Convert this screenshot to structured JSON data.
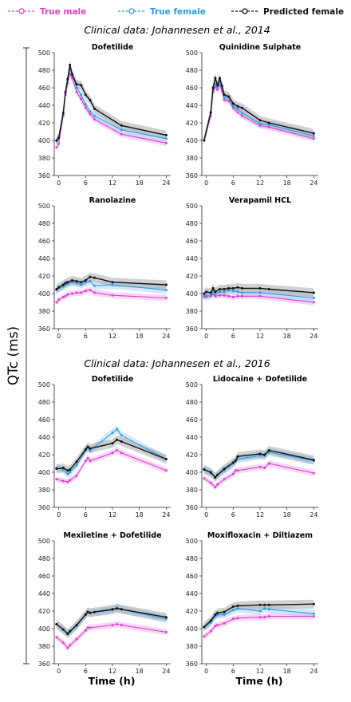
{
  "legend": [
    {
      "label": "True male",
      "color": "#e040d0"
    },
    {
      "label": "True female",
      "color": "#2e9be6"
    },
    {
      "label": "Predicted female",
      "color": "#111111"
    }
  ],
  "sections": [
    "Clinical data: Johannesen et al., 2014",
    "Clinical data: Johannesen et al., 2016"
  ],
  "axes": {
    "ylabel": "QTc (ms)",
    "xlabel": "Time (h)"
  },
  "chart_data": [
    {
      "type": "line",
      "title": "Dofetilide",
      "section": 0,
      "xlim": [
        -1,
        25
      ],
      "ylim": [
        360,
        500
      ],
      "xticks": [
        0,
        6,
        12,
        18,
        24
      ],
      "yticks": [
        360,
        380,
        400,
        420,
        440,
        460,
        480,
        500
      ],
      "series": [
        {
          "name": "True male",
          "x": [
            -0.5,
            0,
            1,
            1.5,
            2,
            2.5,
            3,
            4,
            5,
            6,
            7,
            8,
            14,
            24
          ],
          "y": [
            392,
            396,
            428,
            452,
            465,
            476,
            471,
            455,
            447,
            437,
            430,
            424,
            407,
            397
          ]
        },
        {
          "name": "True female",
          "x": [
            -0.5,
            0,
            1,
            1.5,
            2,
            2.5,
            3,
            4,
            5,
            6,
            7,
            8,
            14,
            24
          ],
          "y": [
            399,
            402,
            430,
            455,
            469,
            481,
            476,
            460,
            452,
            441,
            433,
            428,
            412,
            402
          ]
        },
        {
          "name": "Predicted female",
          "x": [
            -0.5,
            0,
            1,
            1.5,
            2,
            2.5,
            3,
            4,
            5,
            6,
            7,
            8,
            14,
            24
          ],
          "y": [
            400,
            403,
            431,
            455,
            470,
            486,
            475,
            464,
            463,
            452,
            446,
            436,
            417,
            406
          ]
        }
      ]
    },
    {
      "type": "line",
      "title": "Quinidine Sulphate",
      "section": 0,
      "xlim": [
        -1,
        25
      ],
      "ylim": [
        360,
        500
      ],
      "xticks": [
        0,
        6,
        12,
        18,
        24
      ],
      "yticks": [
        360,
        380,
        400,
        420,
        440,
        460,
        480,
        500
      ],
      "series": [
        {
          "name": "True male",
          "x": [
            -0.5,
            1,
            1.5,
            2,
            2.5,
            3,
            3.5,
            4,
            5,
            6,
            7,
            8,
            12,
            14,
            24
          ],
          "y": [
            400,
            428,
            455,
            461,
            458,
            463,
            456,
            446,
            445,
            437,
            432,
            428,
            417,
            415,
            402
          ]
        },
        {
          "name": "True female",
          "x": [
            -0.5,
            1,
            1.5,
            2,
            2.5,
            3,
            3.5,
            4,
            5,
            6,
            7,
            8,
            12,
            14,
            24
          ],
          "y": [
            400,
            431,
            458,
            464,
            461,
            466,
            460,
            449,
            449,
            439,
            436,
            431,
            419,
            418,
            405
          ]
        },
        {
          "name": "Predicted female",
          "x": [
            -0.5,
            1,
            1.5,
            2,
            2.5,
            3,
            3.5,
            4,
            5,
            6,
            7,
            8,
            12,
            14,
            24
          ],
          "y": [
            400,
            432,
            460,
            471,
            463,
            471,
            462,
            452,
            450,
            442,
            439,
            437,
            423,
            420,
            408
          ]
        }
      ]
    },
    {
      "type": "line",
      "title": "Ranolazine",
      "section": 0,
      "xlim": [
        -1,
        25
      ],
      "ylim": [
        360,
        500
      ],
      "xticks": [
        0,
        6,
        12,
        18,
        24
      ],
      "yticks": [
        360,
        380,
        400,
        420,
        440,
        460,
        480,
        500
      ],
      "series": [
        {
          "name": "True male",
          "x": [
            -0.5,
            0,
            1,
            1.5,
            2,
            3,
            4,
            5,
            6,
            7,
            8,
            12,
            24
          ],
          "y": [
            390,
            393,
            396,
            397,
            399,
            400,
            401,
            401,
            403,
            404,
            401,
            398,
            395
          ]
        },
        {
          "name": "True female",
          "x": [
            -0.5,
            0,
            1,
            1.5,
            2,
            3,
            4,
            5,
            6,
            7,
            8,
            12,
            24
          ],
          "y": [
            404,
            406,
            408,
            410,
            411,
            413,
            412,
            410,
            413,
            414,
            409,
            410,
            404
          ]
        },
        {
          "name": "Predicted female",
          "x": [
            -0.5,
            0,
            1,
            1.5,
            2,
            3,
            4,
            5,
            6,
            7,
            8,
            12,
            24
          ],
          "y": [
            405,
            407,
            410,
            412,
            413,
            415,
            414,
            413,
            415,
            419,
            418,
            413,
            410
          ]
        }
      ]
    },
    {
      "type": "line",
      "title": "Verapamil HCL",
      "section": 0,
      "xlim": [
        -1,
        25
      ],
      "ylim": [
        360,
        500
      ],
      "xticks": [
        0,
        6,
        12,
        18,
        24
      ],
      "yticks": [
        360,
        380,
        400,
        420,
        440,
        460,
        480,
        500
      ],
      "series": [
        {
          "name": "True male",
          "x": [
            -0.5,
            0,
            1,
            1.5,
            2,
            3,
            4,
            5,
            6,
            7,
            8,
            12,
            24
          ],
          "y": [
            396,
            398,
            397,
            399,
            397,
            398,
            398,
            397,
            396,
            397,
            397,
            397,
            390
          ]
        },
        {
          "name": "True female",
          "x": [
            -0.5,
            0,
            1,
            1.5,
            2,
            3,
            4,
            5,
            6,
            7,
            8,
            12,
            24
          ],
          "y": [
            398,
            396,
            398,
            403,
            400,
            402,
            402,
            404,
            403,
            402,
            401,
            401,
            395
          ]
        },
        {
          "name": "Predicted female",
          "x": [
            -0.5,
            0,
            1,
            1.5,
            2,
            3,
            4,
            5,
            6,
            7,
            8,
            12,
            14,
            24
          ],
          "y": [
            400,
            402,
            401,
            406,
            402,
            405,
            405,
            406,
            406,
            407,
            406,
            406,
            405,
            401
          ]
        }
      ]
    },
    {
      "type": "line",
      "title": "Dofetilide",
      "section": 1,
      "xlim": [
        -1,
        25
      ],
      "ylim": [
        360,
        500
      ],
      "xticks": [
        0,
        6,
        12,
        18,
        24
      ],
      "yticks": [
        360,
        380,
        400,
        420,
        440,
        460,
        480,
        500
      ],
      "series": [
        {
          "name": "True male",
          "x": [
            -0.5,
            1,
            2,
            2.5,
            4,
            6,
            6.5,
            7,
            12,
            13,
            14,
            24
          ],
          "y": [
            392,
            390,
            389,
            391,
            396,
            413,
            416,
            413,
            422,
            425,
            422,
            402
          ]
        },
        {
          "name": "True female",
          "x": [
            -0.5,
            1,
            2,
            2.5,
            4,
            6,
            6.5,
            7,
            12,
            13,
            14,
            24
          ],
          "y": [
            405,
            403,
            398,
            400,
            408,
            425,
            428,
            425,
            445,
            449,
            442,
            415
          ]
        },
        {
          "name": "Predicted female",
          "x": [
            -0.5,
            1,
            2,
            2.5,
            4,
            6,
            6.5,
            7,
            12,
            13,
            14,
            24
          ],
          "y": [
            404,
            405,
            402,
            403,
            412,
            426,
            429,
            427,
            433,
            437,
            435,
            415
          ]
        }
      ]
    },
    {
      "type": "line",
      "title": "Lidocaine + Dofetilide",
      "section": 1,
      "xlim": [
        -1,
        25
      ],
      "ylim": [
        360,
        500
      ],
      "xticks": [
        0,
        6,
        12,
        18,
        24
      ],
      "yticks": [
        360,
        380,
        400,
        420,
        440,
        460,
        480,
        500
      ],
      "series": [
        {
          "name": "True male",
          "x": [
            -0.5,
            1,
            2,
            2.5,
            4,
            6,
            6.5,
            7,
            12,
            13,
            14,
            24
          ],
          "y": [
            393,
            388,
            383,
            386,
            392,
            398,
            402,
            402,
            406,
            405,
            410,
            399
          ]
        },
        {
          "name": "True female",
          "x": [
            -0.5,
            1,
            2,
            2.5,
            4,
            6,
            6.5,
            7,
            12,
            13,
            14,
            24
          ],
          "y": [
            404,
            399,
            395,
            397,
            402,
            410,
            413,
            415,
            419,
            419,
            423,
            413
          ]
        },
        {
          "name": "Predicted female",
          "x": [
            -0.5,
            1,
            2,
            2.5,
            4,
            6,
            6.5,
            7,
            12,
            13,
            14,
            24
          ],
          "y": [
            403,
            400,
            394,
            397,
            404,
            411,
            413,
            418,
            421,
            420,
            425,
            414
          ]
        }
      ]
    },
    {
      "type": "line",
      "title": "Mexiletine + Dofetilide",
      "section": 1,
      "xlim": [
        -1,
        25
      ],
      "ylim": [
        360,
        500
      ],
      "xticks": [
        0,
        6,
        12,
        18,
        24
      ],
      "yticks": [
        360,
        380,
        400,
        420,
        440,
        460,
        480,
        500
      ],
      "series": [
        {
          "name": "True male",
          "x": [
            -0.5,
            1,
            2,
            2.5,
            4,
            6,
            6.5,
            7,
            12,
            13,
            14,
            24
          ],
          "y": [
            390,
            384,
            378,
            381,
            388,
            398,
            401,
            401,
            404,
            405,
            404,
            396
          ]
        },
        {
          "name": "True female",
          "x": [
            -0.5,
            1,
            2,
            2.5,
            4,
            6,
            6.5,
            7,
            12,
            13,
            14,
            24
          ],
          "y": [
            405,
            399,
            395,
            396,
            403,
            416,
            419,
            418,
            421,
            424,
            422,
            411
          ]
        },
        {
          "name": "Predicted female",
          "x": [
            -0.5,
            1,
            2,
            2.5,
            4,
            6,
            6.5,
            7,
            8,
            12,
            13,
            14,
            24
          ],
          "y": [
            405,
            399,
            394,
            397,
            404,
            416,
            419,
            418,
            419,
            422,
            423,
            422,
            413
          ]
        }
      ]
    },
    {
      "type": "line",
      "title": "Moxifloxacin + Diltiazem",
      "section": 1,
      "xlim": [
        -1,
        25
      ],
      "ylim": [
        360,
        500
      ],
      "xticks": [
        0,
        6,
        12,
        18,
        24
      ],
      "yticks": [
        360,
        380,
        400,
        420,
        440,
        460,
        480,
        500
      ],
      "series": [
        {
          "name": "True male",
          "x": [
            -0.5,
            1,
            2,
            2.5,
            4,
            6,
            7,
            12,
            13,
            14,
            24
          ],
          "y": [
            391,
            397,
            403,
            404,
            406,
            411,
            412,
            413,
            413,
            414,
            414
          ]
        },
        {
          "name": "True female",
          "x": [
            -0.5,
            1,
            2,
            2.5,
            4,
            6,
            7,
            12,
            13,
            14,
            24
          ],
          "y": [
            401,
            407,
            414,
            416,
            416,
            421,
            423,
            420,
            423,
            422,
            417
          ]
        },
        {
          "name": "Predicted female",
          "x": [
            -0.5,
            1,
            2,
            2.5,
            4,
            6,
            7,
            12,
            13,
            14,
            24
          ],
          "y": [
            402,
            409,
            416,
            418,
            419,
            425,
            426,
            427,
            427,
            427,
            428
          ]
        }
      ]
    }
  ]
}
